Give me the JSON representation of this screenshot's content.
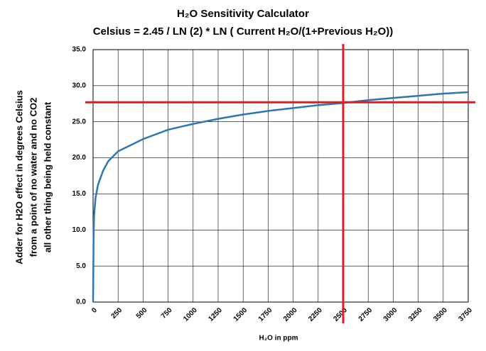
{
  "chart_data": {
    "type": "line",
    "title": "H₂O Sensitivity Calculator",
    "subtitle": "Celsius = 2.45 / LN (2) * LN ( Current H₂O/(1+Previous H₂O))",
    "x_label": "H₂O in ppm",
    "y_label": [
      "Adder for H2O effect in degrees Celsius",
      "from a point of no water and no CO2",
      "all other thing being held constant"
    ],
    "x": [
      0,
      5,
      10,
      25,
      50,
      100,
      150,
      250,
      500,
      750,
      1000,
      1250,
      1500,
      1750,
      2000,
      2250,
      2500,
      2750,
      3000,
      3250,
      3500,
      3750
    ],
    "series": [
      {
        "color": "#2e75b6",
        "values": [
          0,
          9,
          12,
          14.5,
          16.3,
          18.2,
          19.5,
          20.9,
          22.6,
          23.9,
          24.7,
          25.4,
          26.0,
          26.5,
          26.9,
          27.3,
          27.6,
          28.0,
          28.3,
          28.6,
          28.9,
          29.1
        ]
      }
    ],
    "xlim": [
      0,
      3750
    ],
    "xticks": [
      0,
      250,
      500,
      750,
      1000,
      1250,
      1500,
      1750,
      2000,
      2250,
      2500,
      2750,
      3000,
      3250,
      3500,
      3750
    ],
    "ylim": [
      0,
      35
    ],
    "yticks": [
      {
        "value": 0,
        "label": "0.0"
      },
      {
        "value": 5,
        "label": "5.0"
      },
      {
        "value": 10,
        "label": "10.0"
      },
      {
        "value": 15,
        "label": "15.0"
      },
      {
        "value": 20,
        "label": "20.0"
      },
      {
        "value": 25,
        "label": "25.0"
      },
      {
        "value": 30,
        "label": "30.0"
      },
      {
        "value": 35,
        "label": "35.0"
      }
    ],
    "grid": true,
    "reference_lines": {
      "x": 2500,
      "y": 27.7,
      "color": "#e8191c"
    }
  }
}
